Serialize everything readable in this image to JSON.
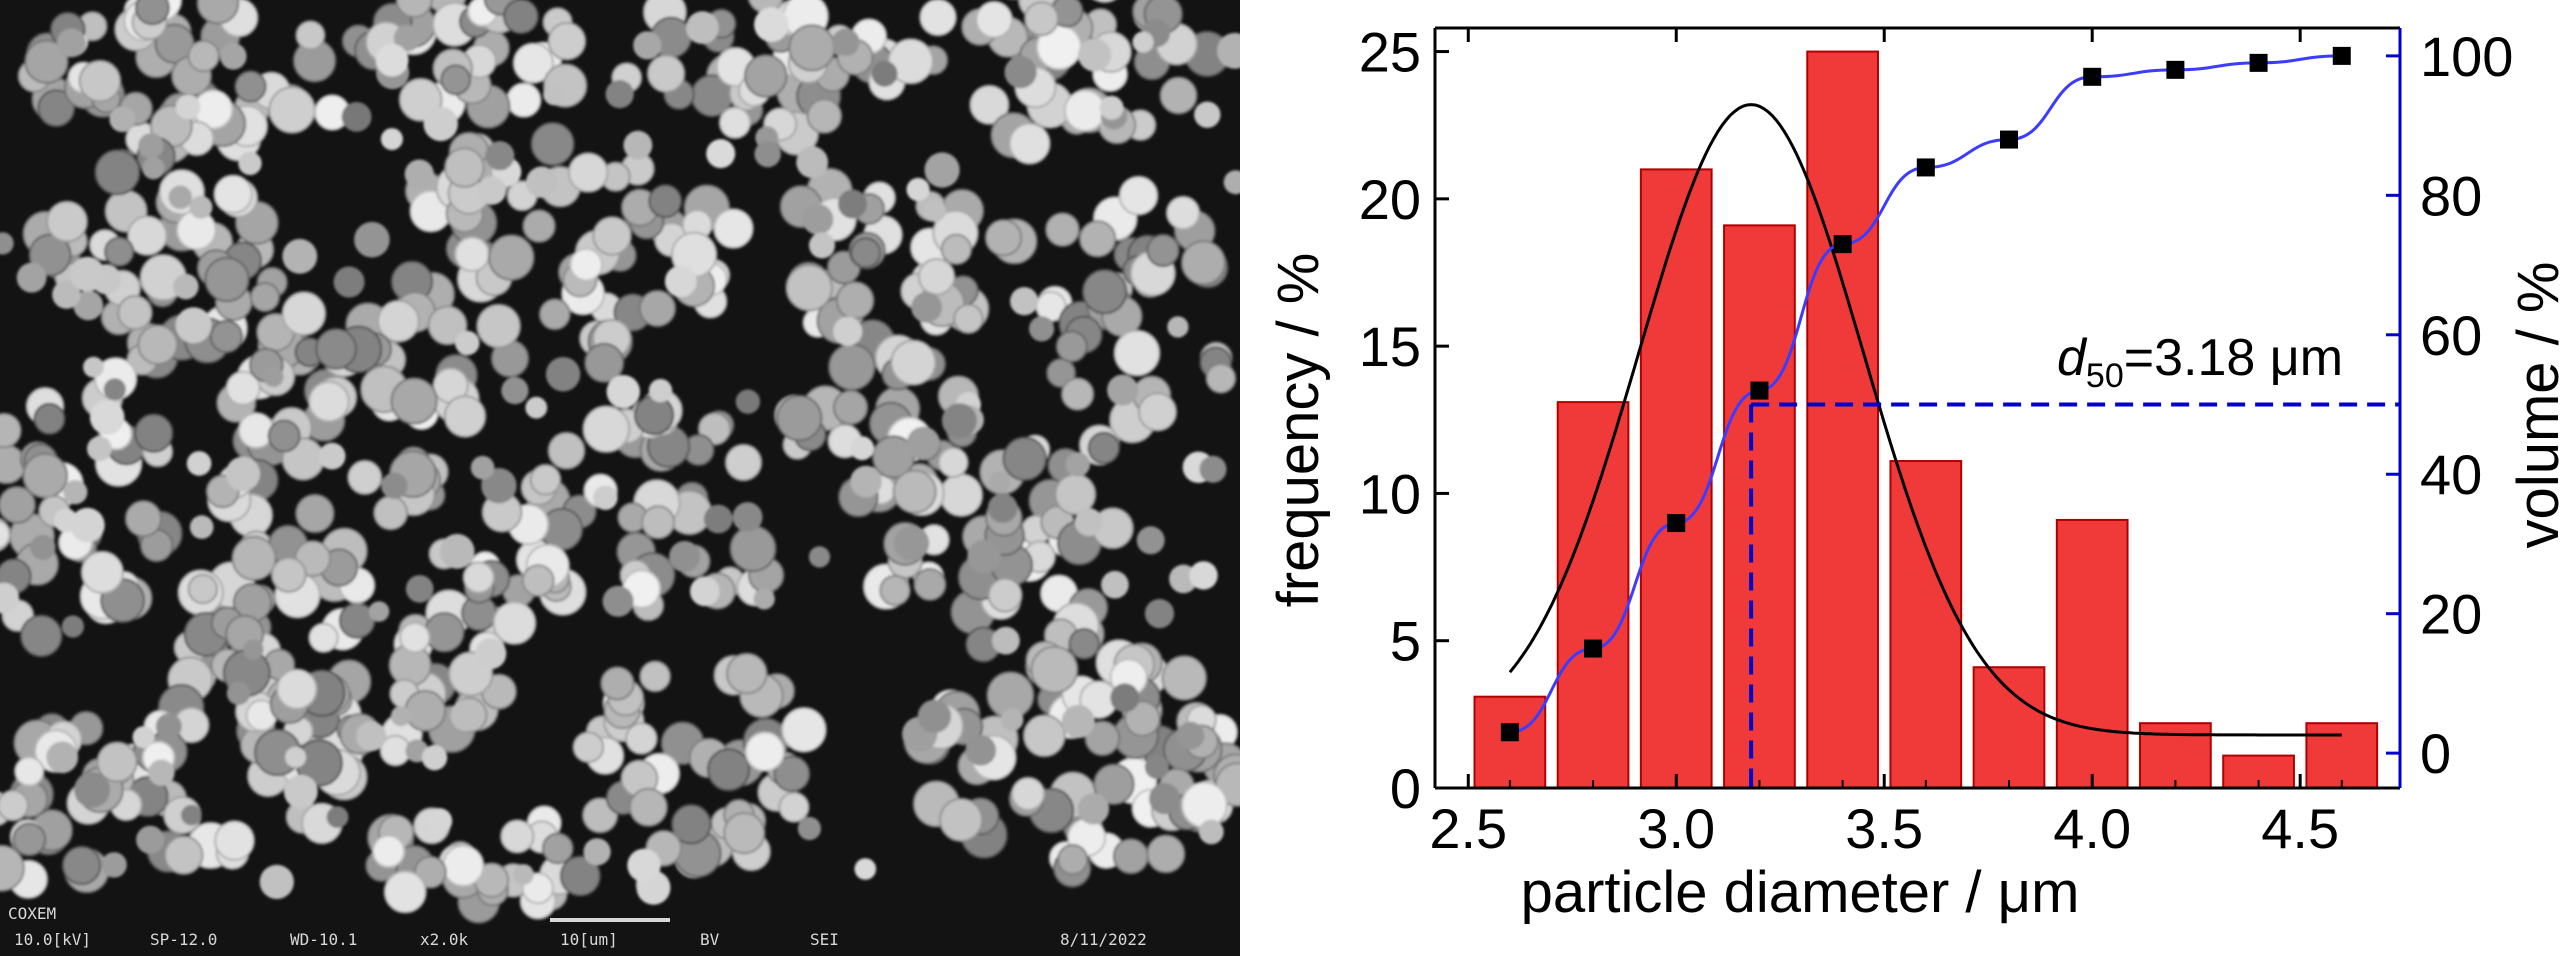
{
  "sem_image": {
    "label": "COXEM",
    "voltage": "10.0[kV]",
    "spot": "SP-12.0",
    "working_distance": "WD-10.1",
    "magnification": "x2.0k",
    "scale_bar": "10[um]",
    "detector": "BV",
    "mode": "SEI",
    "date": "8/11/2022"
  },
  "chart_data": {
    "type": "bar",
    "xlabel": "particle diameter / μm",
    "ylabel": "frequency / %",
    "y2label": "volume / %",
    "xlim": [
      2.42,
      4.74
    ],
    "ylim": [
      0,
      25.8
    ],
    "y2lim": [
      -5,
      104
    ],
    "xticks": [
      "2.5",
      "3.0",
      "3.5",
      "4.0",
      "4.5"
    ],
    "yticks": [
      "0",
      "5",
      "10",
      "15",
      "20",
      "25"
    ],
    "y2ticks": [
      "0",
      "20",
      "40",
      "60",
      "80",
      "100"
    ],
    "bar_color": "#f03a3a",
    "fit_color": "#000000",
    "cumulative_color": "#3c3cff",
    "marker_color": "#000000",
    "d50_color": "#0000cc",
    "bars": [
      {
        "x": 2.6,
        "value": 3.1
      },
      {
        "x": 2.8,
        "value": 13.1
      },
      {
        "x": 3.0,
        "value": 21.0
      },
      {
        "x": 3.2,
        "value": 19.1
      },
      {
        "x": 3.4,
        "value": 25.0
      },
      {
        "x": 3.6,
        "value": 11.1
      },
      {
        "x": 3.8,
        "value": 4.1
      },
      {
        "x": 4.0,
        "value": 9.1
      },
      {
        "x": 4.2,
        "value": 2.2
      },
      {
        "x": 4.4,
        "value": 1.1
      },
      {
        "x": 4.6,
        "value": 2.2
      }
    ],
    "gaussian_fit": {
      "y0": 1.8,
      "amplitude": 21.4,
      "center": 3.18,
      "sigma": 0.27,
      "x_range": [
        2.6,
        4.6
      ]
    },
    "cumulative_points": [
      {
        "x": 2.6,
        "y": 3
      },
      {
        "x": 2.8,
        "y": 15
      },
      {
        "x": 3.0,
        "y": 33
      },
      {
        "x": 3.2,
        "y": 52
      },
      {
        "x": 3.4,
        "y": 73
      },
      {
        "x": 3.6,
        "y": 84
      },
      {
        "x": 3.8,
        "y": 88
      },
      {
        "x": 4.0,
        "y": 97
      },
      {
        "x": 4.2,
        "y": 98
      },
      {
        "x": 4.4,
        "y": 99
      },
      {
        "x": 4.6,
        "y": 100
      }
    ],
    "d50": {
      "x": 3.18,
      "volume": 50,
      "label_sym": "d",
      "label_sub": "50",
      "label_rest": "=3.18 μm"
    }
  }
}
